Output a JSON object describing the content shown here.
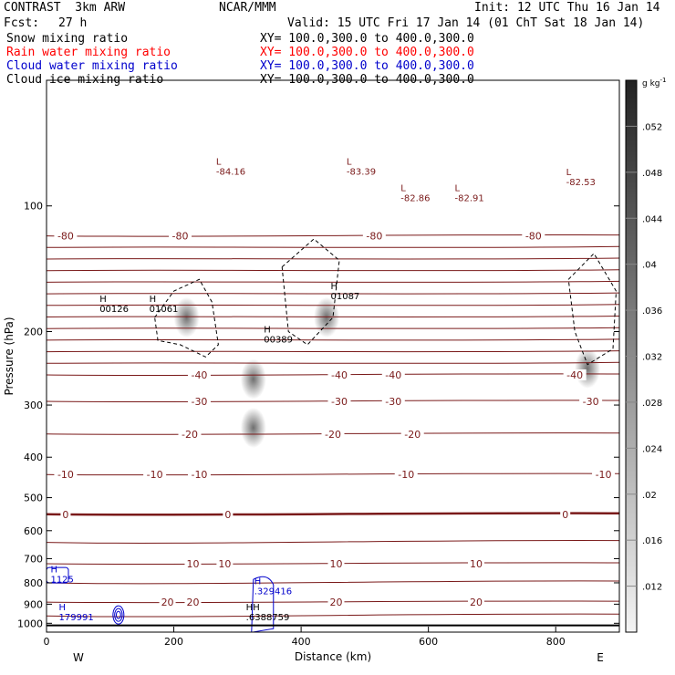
{
  "header": {
    "model": "CONTRAST  3km ARW",
    "center": "NCAR/MMM",
    "init": "Init: 12 UTC Thu 16 Jan 14",
    "fcst_label": "Fcst:",
    "fcst_value": "27 h",
    "valid": "Valid: 15 UTC Fri 17 Jan 14 (01 ChT Sat 18 Jan 14)",
    "fields": [
      {
        "name": "Snow mixing ratio",
        "xy": "XY= 100.0,300.0 to 400.0,300.0",
        "color": "#000000"
      },
      {
        "name": "Rain water mixing ratio",
        "xy": "XY= 100.0,300.0 to 400.0,300.0",
        "color": "#ff0000"
      },
      {
        "name": "Cloud water mixing ratio",
        "xy": "XY= 100.0,300.0 to 400.0,300.0",
        "color": "#0000cc"
      },
      {
        "name": "Cloud ice mixing ratio",
        "xy": "XY= 100.0,300.0 to 400.0,300.0",
        "color": "#000000"
      }
    ]
  },
  "chart_data": {
    "type": "heatmap",
    "xlabel": "Distance (km)",
    "ylabel": "Pressure (hPa)",
    "xlim": [
      0,
      900
    ],
    "ylim": [
      1050,
      50
    ],
    "yscale": "log",
    "x_ticks": [
      0,
      200,
      400,
      600,
      800
    ],
    "y_ticks": [
      100,
      200,
      300,
      400,
      500,
      600,
      700,
      800,
      900,
      1000
    ],
    "end_labels": {
      "left": "W",
      "right": "E"
    },
    "colorbar": {
      "unit": "g kg",
      "unit_exp": "-1",
      "ticks": [
        ".012",
        ".016",
        ".02",
        ".024",
        ".028",
        ".032",
        ".036",
        ".04",
        ".044",
        ".048",
        ".052"
      ]
    },
    "colors": {
      "temperature": "#7a1a1a",
      "cloud_water": "#0000cc",
      "rain": "#ff0000",
      "shading": "#555555"
    },
    "isotherms": [
      {
        "label": "-80",
        "p": 118,
        "labels_at_x": [
          30,
          210,
          515,
          765
        ]
      },
      {
        "label": "-40",
        "p": 254,
        "labels_at_x": [
          240,
          460,
          545,
          830
        ]
      },
      {
        "label": "-30",
        "p": 294,
        "labels_at_x": [
          240,
          460,
          545,
          855
        ]
      },
      {
        "label": "-20",
        "p": 352,
        "labels_at_x": [
          225,
          450,
          575
        ]
      },
      {
        "label": "-10",
        "p": 440,
        "labels_at_x": [
          30,
          170,
          240,
          565,
          875
        ]
      },
      {
        "label": "0",
        "p": 548,
        "labels_at_x": [
          30,
          285,
          815
        ],
        "bold": true
      },
      {
        "label": "10",
        "p": 720,
        "labels_at_x": [
          230,
          280,
          455,
          675
        ]
      },
      {
        "label": "20",
        "p": 890,
        "labels_at_x": [
          190,
          230,
          455,
          675
        ]
      }
    ],
    "extrema": [
      {
        "type": "L",
        "value": "-84.16",
        "x": 275,
        "p": 82
      },
      {
        "type": "L",
        "value": "-83.39",
        "x": 480,
        "p": 82
      },
      {
        "type": "L",
        "value": "-82.86",
        "x": 565,
        "p": 95
      },
      {
        "type": "L",
        "value": "-82.91",
        "x": 650,
        "p": 95
      },
      {
        "type": "L",
        "value": "-82.53",
        "x": 825,
        "p": 87
      },
      {
        "type": "H",
        "value": "00126",
        "x": 92,
        "p": 175
      },
      {
        "type": "H",
        "value": "01061",
        "x": 170,
        "p": 175
      },
      {
        "type": "H",
        "value": "01087",
        "x": 455,
        "p": 163
      },
      {
        "type": "H",
        "value": "00389",
        "x": 350,
        "p": 207
      },
      {
        "type": "H",
        "value": "1125",
        "x": 15,
        "p": 778
      },
      {
        "type": "H",
        "value": ".329416",
        "x": 335,
        "p": 830
      },
      {
        "type": "H",
        "value": "179991",
        "x": 28,
        "p": 960
      },
      {
        "type": "HH",
        "value": ".6388759",
        "x": 322,
        "p": 960
      }
    ],
    "shading_blobs": [
      {
        "x": 220,
        "p": 185
      },
      {
        "x": 325,
        "p": 260
      },
      {
        "x": 325,
        "p": 340
      },
      {
        "x": 440,
        "p": 185
      },
      {
        "x": 850,
        "p": 245
      }
    ]
  }
}
